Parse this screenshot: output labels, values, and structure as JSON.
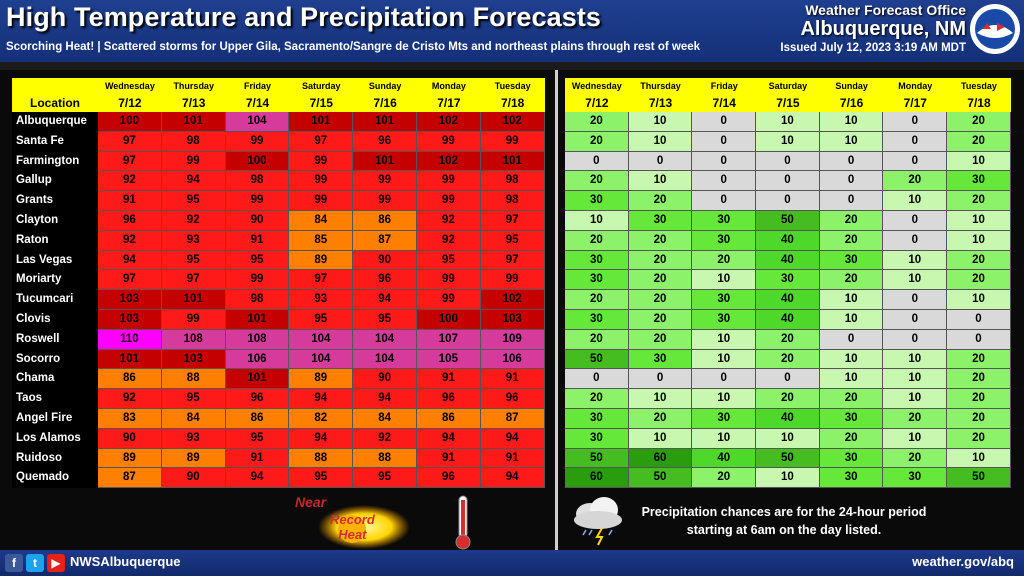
{
  "header": {
    "title": "High Temperature and Precipitation Forecasts",
    "subtitle": "Scorching Heat! | Scattered storms for Upper Gila, Sacramento/Sangre de Cristo Mts and northeast plains through rest of week",
    "office_line1": "Weather Forecast Office",
    "office_line2": "Albuquerque, NM",
    "issued": "Issued July 12, 2023 3:19 AM MDT"
  },
  "columns": {
    "location_label": "Location",
    "days": [
      "Wednesday",
      "Thursday",
      "Friday",
      "Saturday",
      "Sunday",
      "Monday",
      "Tuesday"
    ],
    "dates": [
      "7/12",
      "7/13",
      "7/14",
      "7/15",
      "7/16",
      "7/17",
      "7/18"
    ]
  },
  "table": [
    {
      "loc": "Albuquerque",
      "temps": [
        100,
        101,
        104,
        101,
        101,
        102,
        102
      ],
      "pops": [
        20,
        10,
        0,
        10,
        10,
        0,
        20
      ]
    },
    {
      "loc": "Santa Fe",
      "temps": [
        97,
        98,
        99,
        97,
        96,
        99,
        99
      ],
      "pops": [
        20,
        10,
        0,
        10,
        10,
        0,
        20
      ]
    },
    {
      "loc": "Farmington",
      "temps": [
        97,
        99,
        100,
        99,
        101,
        102,
        101
      ],
      "pops": [
        0,
        0,
        0,
        0,
        0,
        0,
        10
      ]
    },
    {
      "loc": "Gallup",
      "temps": [
        92,
        94,
        98,
        99,
        99,
        99,
        98
      ],
      "pops": [
        20,
        10,
        0,
        0,
        0,
        20,
        30
      ]
    },
    {
      "loc": "Grants",
      "temps": [
        91,
        95,
        99,
        99,
        99,
        99,
        98
      ],
      "pops": [
        30,
        20,
        0,
        0,
        0,
        10,
        20
      ]
    },
    {
      "loc": "Clayton",
      "temps": [
        96,
        92,
        90,
        84,
        86,
        92,
        97
      ],
      "pops": [
        10,
        30,
        30,
        50,
        20,
        0,
        10
      ]
    },
    {
      "loc": "Raton",
      "temps": [
        92,
        93,
        91,
        85,
        87,
        92,
        95
      ],
      "pops": [
        20,
        20,
        30,
        40,
        20,
        0,
        10
      ]
    },
    {
      "loc": "Las Vegas",
      "temps": [
        94,
        95,
        95,
        89,
        90,
        95,
        97
      ],
      "pops": [
        30,
        20,
        20,
        40,
        30,
        10,
        20
      ]
    },
    {
      "loc": "Moriarty",
      "temps": [
        97,
        97,
        99,
        97,
        96,
        99,
        99
      ],
      "pops": [
        30,
        20,
        10,
        30,
        20,
        10,
        20
      ]
    },
    {
      "loc": "Tucumcari",
      "temps": [
        103,
        101,
        98,
        93,
        94,
        99,
        102
      ],
      "pops": [
        20,
        20,
        30,
        40,
        10,
        0,
        10
      ]
    },
    {
      "loc": "Clovis",
      "temps": [
        103,
        99,
        101,
        95,
        95,
        100,
        103
      ],
      "pops": [
        30,
        20,
        30,
        40,
        10,
        0,
        0
      ]
    },
    {
      "loc": "Roswell",
      "temps": [
        110,
        108,
        108,
        104,
        104,
        107,
        109
      ],
      "pops": [
        20,
        20,
        10,
        20,
        0,
        0,
        0
      ]
    },
    {
      "loc": "Socorro",
      "temps": [
        101,
        103,
        106,
        104,
        104,
        105,
        106
      ],
      "pops": [
        50,
        30,
        10,
        20,
        10,
        10,
        20
      ]
    },
    {
      "loc": "Chama",
      "temps": [
        86,
        88,
        101,
        89,
        90,
        91,
        91
      ],
      "pops": [
        0,
        0,
        0,
        0,
        10,
        10,
        20
      ]
    },
    {
      "loc": "Taos",
      "temps": [
        92,
        95,
        96,
        94,
        94,
        96,
        96
      ],
      "pops": [
        20,
        10,
        10,
        20,
        20,
        10,
        20
      ]
    },
    {
      "loc": "Angel Fire",
      "temps": [
        83,
        84,
        86,
        82,
        84,
        86,
        87
      ],
      "pops": [
        30,
        20,
        30,
        40,
        30,
        20,
        20
      ]
    },
    {
      "loc": "Los Alamos",
      "temps": [
        90,
        93,
        95,
        94,
        92,
        94,
        94
      ],
      "pops": [
        30,
        10,
        10,
        10,
        20,
        10,
        20
      ]
    },
    {
      "loc": "Ruidoso",
      "temps": [
        89,
        89,
        91,
        88,
        88,
        91,
        91
      ],
      "pops": [
        50,
        60,
        40,
        50,
        30,
        20,
        10
      ]
    },
    {
      "loc": "Quemado",
      "temps": [
        87,
        90,
        94,
        95,
        95,
        96,
        94
      ],
      "pops": [
        60,
        50,
        20,
        10,
        30,
        30,
        50
      ]
    }
  ],
  "bottom": {
    "near": "Near",
    "record_line1": "Record",
    "record_line2": "Heat",
    "precip_note": "Precipitation chances are for the 24-hour period starting at 6am on the day listed."
  },
  "footer": {
    "handle": "NWSAlbuquerque",
    "website": "weather.gov/abq"
  },
  "colors": {
    "header_bg": "#1f3f8f",
    "header_yellow": "#ffff00"
  },
  "icons": [
    "facebook-icon",
    "twitter-icon",
    "youtube-icon",
    "nws-logo-icon",
    "sun-icon",
    "thermometer-icon",
    "storm-cloud-icon"
  ]
}
